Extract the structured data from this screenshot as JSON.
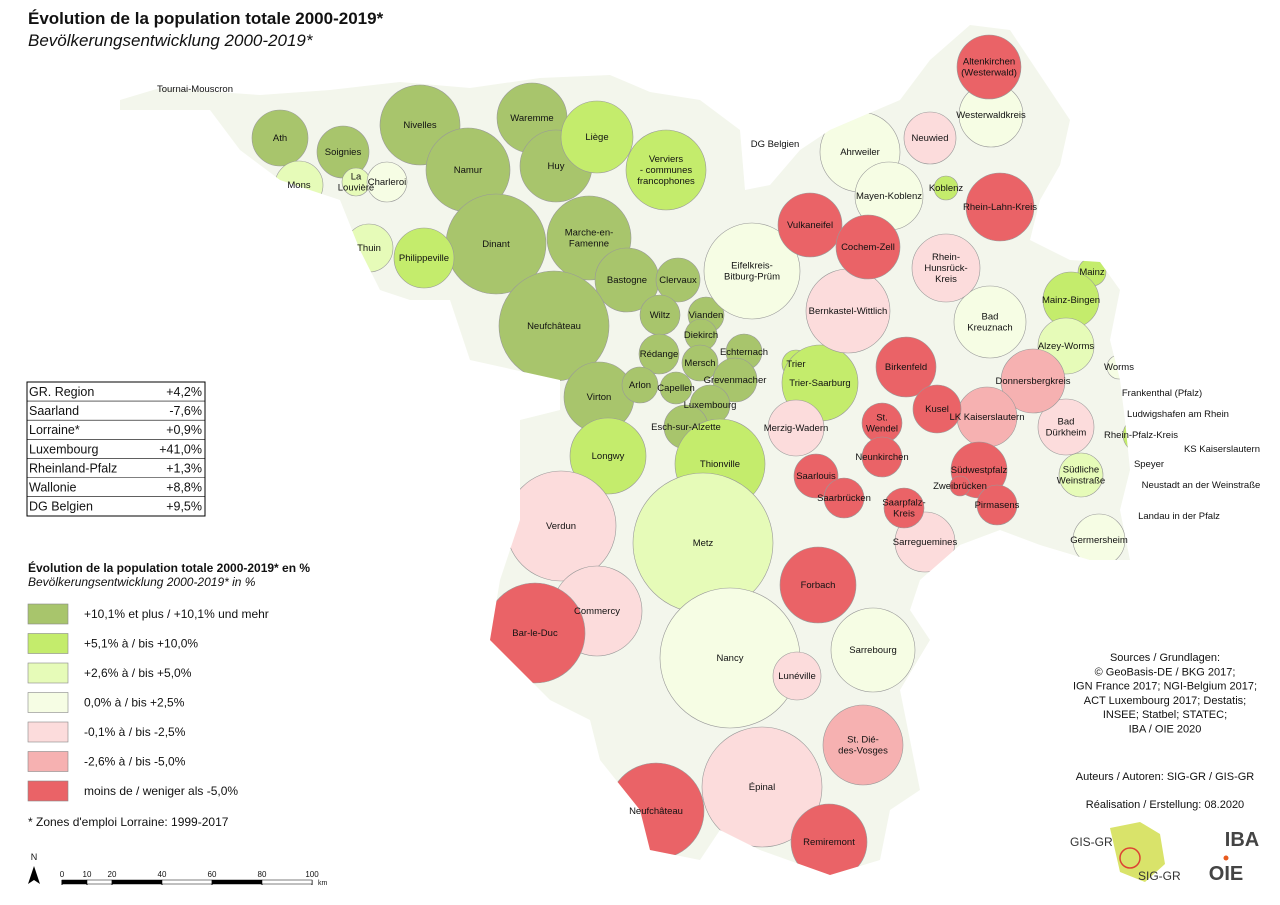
{
  "title": "Évolution de la population totale 2000-2019*",
  "subtitle": "Bevölkerungsentwicklung 2000-2019*",
  "summary_table": {
    "rows": [
      [
        "GR. Region",
        "+4,2%"
      ],
      [
        "Saarland",
        "-7,6%"
      ],
      [
        "Lorraine*",
        "+0,9%"
      ],
      [
        "Luxembourg",
        "+41,0%"
      ],
      [
        "Rheinland-Pfalz",
        "+1,3%"
      ],
      [
        "Wallonie",
        "+8,8%"
      ],
      [
        "DG Belgien",
        "+9,5%"
      ]
    ]
  },
  "legend": {
    "title": "Évolution de la population totale 2000-2019* en %",
    "subtitle": "Bevölkerungsentwicklung 2000-2019* in %",
    "classes": [
      {
        "label": "+10,1% et plus / +10,1% und mehr",
        "color": "#a8c56c",
        "regions": [
          "Ath",
          "Soignies",
          "Nivelles",
          "Waremme",
          "Namur",
          "Huy",
          "Dinant",
          "Marche-en-\nFamenne",
          "Bastogne",
          "Neufchâteau",
          "Virton",
          "Clervaux",
          "Wiltz",
          "Vianden",
          "Diekirch",
          "Rédange",
          "Mersch",
          "Echternach",
          "Arlon",
          "Capellen",
          "Grevenmacher",
          "Luxembourg",
          "Esch-sur-Alzette"
        ]
      },
      {
        "label": "+5,1% à / bis +10,0%",
        "color": "#c4ec6c",
        "regions": [
          "Philippeville",
          "Liège",
          "Verviers\n- communes\nfrancophones",
          "DG Belgien",
          "Trier",
          "Trier-Saarburg",
          "Koblenz",
          "Mainz",
          "Mainz-Bingen",
          "Rhein-Pfalz-Kreis",
          "Neustadt an der Weinstraße",
          "Landau in der Pfalz",
          "Longwy",
          "Thionville"
        ]
      },
      {
        "label": "+2,6% à / bis +5,0%",
        "color": "#e6fbb8",
        "regions": [
          "Tournai-Mouscron",
          "Mons",
          "La\nLouvière",
          "Thuin",
          "Alzey-Worms",
          "Frankenthal (Pfalz)",
          "Südliche\nWeinstraße",
          "Metz"
        ]
      },
      {
        "label": "0,0% à / bis +2,5%",
        "color": "#f6fde4",
        "regions": [
          "Charleroi",
          "Eifelkreis-\nBitburg-Prüm",
          "Ahrweiler",
          "Mayen-Koblenz",
          "Westerwaldkreis",
          "Bad\nKreuznach",
          "Worms",
          "Ludwigshafen am Rhein",
          "Speyer",
          "Germersheim",
          "Nancy",
          "Sarrebourg"
        ]
      },
      {
        "label": "-0,1% à / bis -2,5%",
        "color": "#fcdcdc",
        "regions": [
          "Bernkastel-Wittlich",
          "Neuwied",
          "Rhein-\nHunsrück-\nKreis",
          "Bad\nDürkheim",
          "KS Kaiserslautern",
          "Merzig-Wadern",
          "Verdun",
          "Sarreguemines",
          "Commercy",
          "Lunéville",
          "Épinal"
        ]
      },
      {
        "label": "-2,6% à / bis -5,0%",
        "color": "#f6b1b1",
        "regions": [
          "Donnersbergkreis",
          "LK Kaiserslautern",
          "St. Dié-\ndes-Vosges"
        ]
      },
      {
        "label": "moins de / weniger als -5,0%",
        "color": "#ea6367",
        "regions": [
          "Altenkirchen\n(Westerwald)",
          "Vulkaneifel",
          "Cochem-Zell",
          "Rhein-Lahn-Kreis",
          "Birkenfeld",
          "Kusel",
          "Südwestpfalz",
          "Zweibrücken",
          "Pirmasens",
          "St.\nWendel",
          "Neunkirchen",
          "Saarlouis",
          "Saarbrücken",
          "Saarpfalz-\nKreis",
          "Forbach",
          "Bar-le-Duc",
          "Neufchâteau",
          "Remiremont"
        ]
      }
    ]
  },
  "footnote": "* Zones d'emploi Lorraine: 1999-2017",
  "sources": [
    "Sources / Grundlagen:",
    "© GeoBasis-DE / BKG 2017;",
    "IGN France 2017; NGI-Belgium 2017;",
    "ACT Luxembourg 2017; Destatis;",
    "INSEE; Statbel; STATEC;",
    "IBA / OIE 2020"
  ],
  "authors": "Auteurs / Autoren: SIG-GR / GIS-GR",
  "realisation": "Réalisation / Erstellung: 08.2020",
  "north": "N",
  "scale_bar": {
    "ticks": [
      0,
      10,
      20,
      40,
      60,
      80,
      100
    ],
    "unit": "km"
  },
  "logos": {
    "gis": "GIS-GR",
    "sig": "SIG-GR",
    "iba": "IBA",
    "oie": "OIE"
  }
}
